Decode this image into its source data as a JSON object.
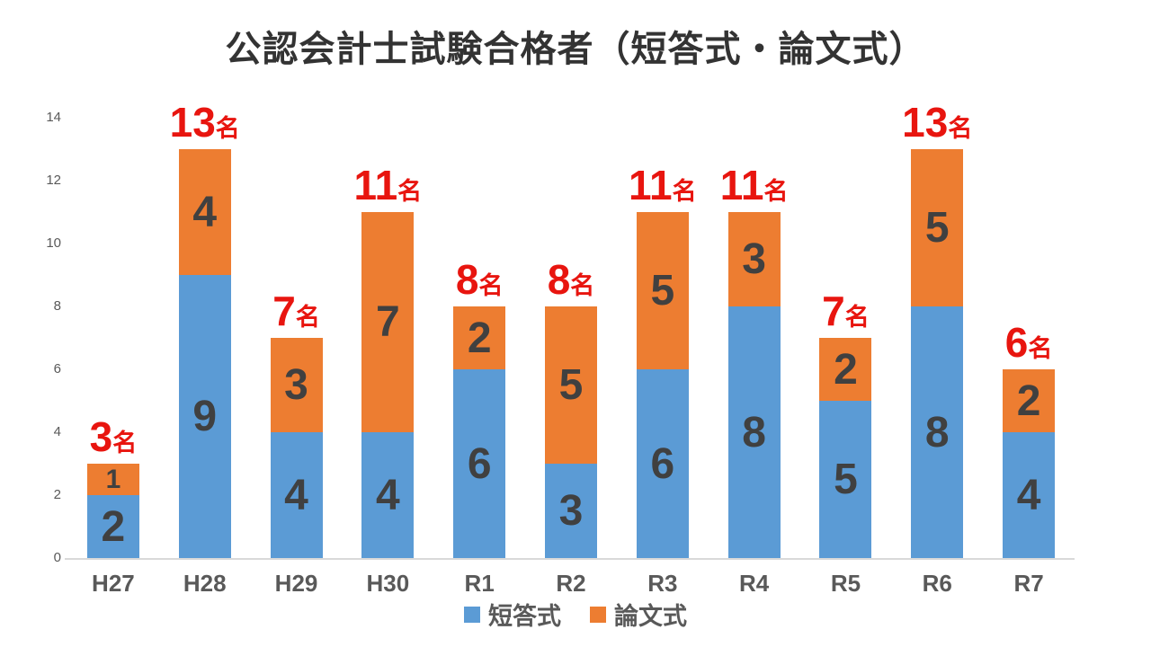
{
  "chart_data": {
    "type": "bar",
    "stacked": true,
    "title": "公認会計士試験合格者（短答式・論文式）",
    "categories": [
      "H27",
      "H28",
      "H29",
      "H30",
      "R1",
      "R2",
      "R3",
      "R4",
      "R5",
      "R6",
      "R7"
    ],
    "series": [
      {
        "name": "短答式",
        "color": "#5B9BD5",
        "values": [
          2,
          9,
          4,
          4,
          6,
          3,
          6,
          8,
          5,
          8,
          4
        ]
      },
      {
        "name": "論文式",
        "color": "#ED7D31",
        "values": [
          1,
          4,
          3,
          7,
          2,
          5,
          5,
          3,
          2,
          5,
          2
        ]
      }
    ],
    "totals": [
      3,
      13,
      7,
      11,
      8,
      8,
      11,
      11,
      7,
      13,
      6
    ],
    "total_suffix": "名",
    "ylim": [
      0,
      14
    ],
    "yticks": [
      0,
      2,
      4,
      6,
      8,
      10,
      12,
      14
    ],
    "grid": false,
    "legend_position": "bottom",
    "colors": {
      "value_label": "#404040",
      "total_label": "#E8150F",
      "axis_text": "#595959",
      "axis_line": "#D9D9D9",
      "title_text": "#333333",
      "background": "#FFFFFF"
    }
  }
}
